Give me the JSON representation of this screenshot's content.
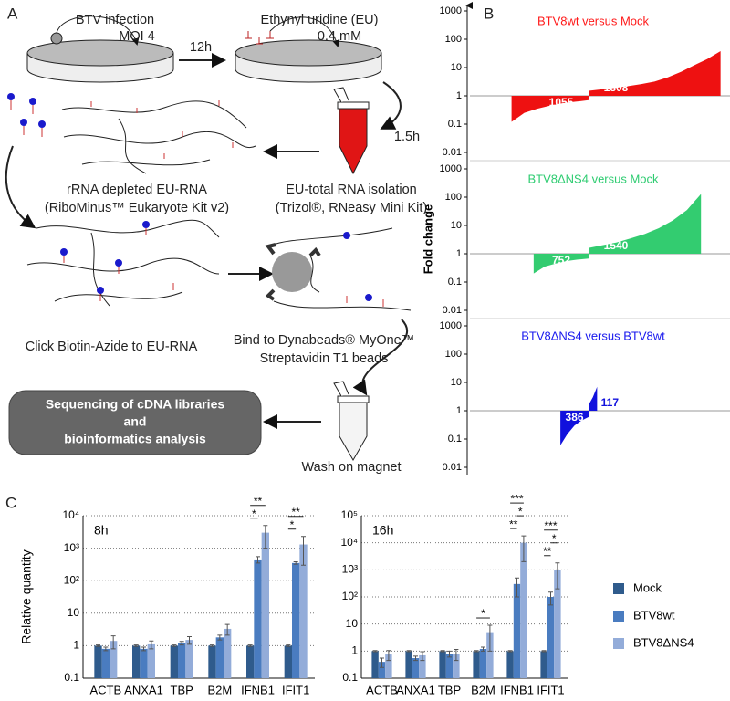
{
  "panel_labels": [
    "A",
    "B",
    "C"
  ],
  "diagram": {
    "infection": [
      "BTV infection",
      "MOI 4"
    ],
    "eu": [
      "Ethynyl uridine (EU)",
      "0.4 mM"
    ],
    "time1": "12h",
    "time2": "1.5h",
    "isolation": [
      "EU-total RNA isolation",
      "(Trizol®, RNeasy Mini Kit)"
    ],
    "depletion": [
      "rRNA depleted EU-RNA",
      "(RiboMinus™ Eukaryote Kit v2)"
    ],
    "click": "Click Biotin-Azide to EU-RNA",
    "bind": [
      "Bind to Dynabeads® MyOne™",
      "Streptavidin T1 beads"
    ],
    "wash": "Wash on magnet",
    "sequencing": [
      "Sequencing of cDNA libraries",
      "and",
      "bioinformatics analysis"
    ]
  },
  "chart_data": [
    {
      "type": "sorted-area",
      "title": "BTV8wt versus Mock",
      "title_color": "#ff1a1a",
      "log": true,
      "ylim": [
        0.01,
        1000
      ],
      "yticks": [
        0.01,
        0.1,
        1,
        10,
        100,
        1000
      ],
      "series": [
        {
          "color": "#ee1111",
          "count": 1055,
          "values": [
            0.12,
            0.25,
            0.35,
            0.45,
            0.55,
            0.62,
            0.7
          ]
        },
        {
          "color": "#ee1111",
          "count": 1808,
          "values": [
            1.5,
            1.7,
            1.9,
            2.2,
            2.6,
            3.2,
            4.5,
            7,
            12,
            20,
            38
          ]
        }
      ]
    },
    {
      "type": "sorted-area",
      "title": "BTV8ΔNS4 versus Mock",
      "title_color": "#2ecc71",
      "log": true,
      "ylabel": "Fold change",
      "ylim": [
        0.01,
        1000
      ],
      "yticks": [
        0.01,
        0.1,
        1,
        10,
        100,
        1000
      ],
      "series": [
        {
          "color": "#33cc70",
          "count": 752,
          "values": [
            0.2,
            0.35,
            0.45,
            0.55,
            0.62,
            0.68
          ]
        },
        {
          "color": "#33cc70",
          "count": 1540,
          "values": [
            1.6,
            2,
            2.5,
            3.5,
            5,
            8,
            15,
            35,
            130
          ]
        }
      ]
    },
    {
      "type": "sorted-area",
      "title": "BTV8ΔNS4 versus BTV8wt",
      "title_color": "#1a1aee",
      "log": true,
      "ylim": [
        0.01,
        1000
      ],
      "yticks": [
        0.01,
        0.1,
        1,
        10,
        100,
        1000
      ],
      "series": [
        {
          "color": "#1111dd",
          "count": 386,
          "values": [
            0.06,
            0.15,
            0.3,
            0.45,
            0.6
          ]
        },
        {
          "color": "#1111dd",
          "count": 117,
          "values": [
            1.6,
            3,
            7
          ]
        }
      ]
    },
    {
      "type": "bar",
      "title": "8h",
      "ylabel": "Relative quantity",
      "log": true,
      "grid": true,
      "categories": [
        "ACTB",
        "ANXA1",
        "TBP",
        "B2M",
        "IFNB1",
        "IFIT1"
      ],
      "ylim": [
        0.1,
        10000
      ],
      "yticks": [
        0.1,
        1,
        10,
        {
          "value": 100,
          "label": "10²"
        },
        {
          "value": 1000,
          "label": "10³"
        },
        {
          "value": 10000,
          "label": "10⁴"
        }
      ],
      "series": [
        {
          "color": "#2f5b8c",
          "values": [
            1,
            1,
            1,
            1,
            1,
            1
          ],
          "errors": [
            0.05,
            0.05,
            0.05,
            0.05,
            0.05,
            0.05
          ]
        },
        {
          "color": "#4a7cc0",
          "values": [
            0.8,
            0.8,
            1.2,
            1.8,
            450,
            350
          ],
          "errors": [
            0.1,
            0.1,
            0.15,
            0.3,
            100,
            30
          ]
        },
        {
          "color": "#93acd9",
          "values": [
            1.4,
            1.1,
            1.5,
            3.3,
            3000,
            1300
          ],
          "errors": [
            0.6,
            0.3,
            0.4,
            1.2,
            2000,
            1000
          ]
        }
      ],
      "annotations": [
        {
          "text": "*",
          "category": 4,
          "from": 0,
          "to": 1
        },
        {
          "text": "**",
          "category": 4,
          "from": 0,
          "to": 2
        },
        {
          "text": "*",
          "category": 5,
          "from": 0,
          "to": 1
        },
        {
          "text": "**",
          "category": 5,
          "from": 0,
          "to": 2
        }
      ]
    },
    {
      "type": "bar",
      "title": "16h",
      "log": true,
      "grid": true,
      "legend": "right",
      "categories": [
        "ACTB",
        "ANXA1",
        "TBP",
        "B2M",
        "IFNB1",
        "IFIT1"
      ],
      "ylim": [
        0.1,
        100000
      ],
      "yticks": [
        0.1,
        1,
        10,
        {
          "value": 100,
          "label": "10²"
        },
        {
          "value": 1000,
          "label": "10³"
        },
        {
          "value": 10000,
          "label": "10⁴"
        },
        {
          "value": 100000,
          "label": "10⁵"
        }
      ],
      "series": [
        {
          "name": "Mock",
          "color": "#2f5b8c",
          "values": [
            1,
            1,
            1,
            1,
            1,
            1
          ],
          "errors": [
            0.05,
            0.05,
            0.05,
            0.05,
            0.05,
            0.05
          ]
        },
        {
          "name": "BTV8wt",
          "color": "#4a7cc0",
          "values": [
            0.4,
            0.55,
            0.8,
            1.2,
            300,
            100
          ],
          "errors": [
            0.15,
            0.1,
            0.2,
            0.2,
            200,
            50
          ]
        },
        {
          "name": "BTV8ΔNS4",
          "color": "#93acd9",
          "values": [
            0.75,
            0.7,
            0.8,
            5,
            10000,
            1000
          ],
          "errors": [
            0.3,
            0.25,
            0.35,
            4,
            8000,
            800
          ]
        }
      ],
      "annotations": [
        {
          "text": "*",
          "category": 3,
          "from": 0,
          "to": 2
        },
        {
          "text": "**",
          "category": 4,
          "from": 0,
          "to": 1
        },
        {
          "text": "*",
          "category": 4,
          "from": 1,
          "to": 2
        },
        {
          "text": "***",
          "category": 4,
          "from": 0,
          "to": 2
        },
        {
          "text": "**",
          "category": 5,
          "from": 0,
          "to": 1
        },
        {
          "text": "*",
          "category": 5,
          "from": 1,
          "to": 2
        },
        {
          "text": "***",
          "category": 5,
          "from": 0,
          "to": 2
        }
      ]
    }
  ]
}
